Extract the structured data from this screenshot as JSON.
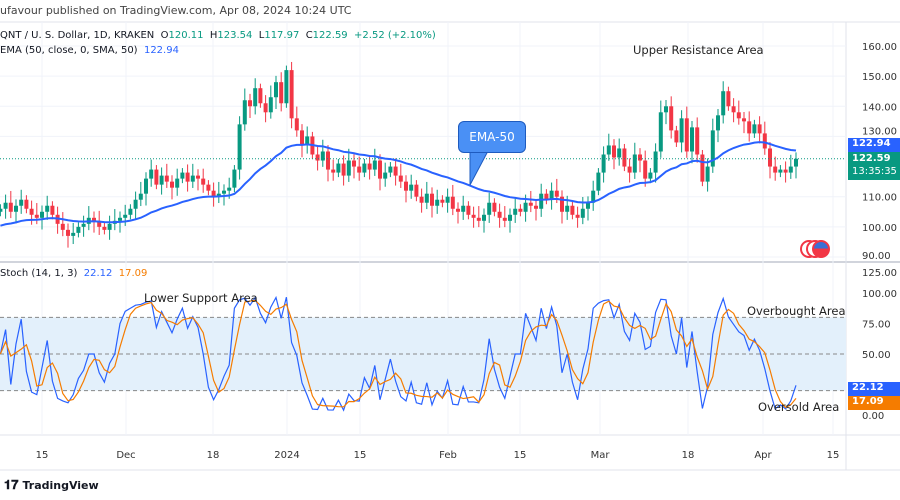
{
  "header": {
    "published": "ufavour published on TradingView.com, Apr 08, 2024 10:24 UTC"
  },
  "legend": {
    "symbol": "QNT / U. S. Dollar, 1D, KRAKEN",
    "o_label": "O",
    "o": "120.11",
    "h_label": "H",
    "h": "123.54",
    "l_label": "L",
    "l": "117.97",
    "c_label": "C",
    "c": "122.59",
    "change": "+2.52 (+2.10%)",
    "ema_label": "EMA (50, close, 0, SMA, 50)",
    "ema_value": "122.94",
    "stoch_label": "Stoch (14, 1, 3)",
    "stoch_k": "22.12",
    "stoch_d": "17.09"
  },
  "annotations": {
    "upper_resistance": "Upper Resistance Area",
    "ema_callout": "EMA-50",
    "lower_support": "Lower Support Area",
    "overbought": "Overbought Area",
    "oversold": "Oversold Area"
  },
  "price_axis": {
    "ticks": [
      "160.00",
      "150.00",
      "140.00",
      "130.00",
      "110.00",
      "100.00",
      "90.00"
    ],
    "ema_tag": "122.94",
    "price_tag": "122.59",
    "countdown": "13:35:35"
  },
  "stoch_axis": {
    "ticks": [
      "125.00",
      "100.00",
      "75.00",
      "50.00",
      "0.00"
    ],
    "k_tag": "22.12",
    "d_tag": "17.09"
  },
  "time_axis": [
    "15",
    "Dec",
    "18",
    "2024",
    "15",
    "Feb",
    "15",
    "Mar",
    "18",
    "Apr",
    "15"
  ],
  "colors": {
    "up": "#089981",
    "down": "#f23645",
    "ema": "#2962ff",
    "stoch_k": "#2962ff",
    "stoch_d": "#f57c00",
    "band": "#e3f0fb"
  },
  "footer": {
    "brand": "TradingView"
  },
  "chart_data": {
    "type": "candlestick",
    "ylim": [
      90,
      160
    ],
    "closes": [
      106,
      108,
      105,
      107,
      109,
      106,
      104,
      103,
      105,
      107,
      104,
      101,
      99,
      97,
      98,
      100,
      101,
      103,
      102,
      100,
      99,
      101,
      102,
      103,
      104,
      106,
      109,
      111,
      116,
      119,
      114,
      117,
      115,
      113,
      116,
      118,
      115,
      117,
      116,
      114,
      112,
      110,
      111,
      112,
      113,
      119,
      134,
      142,
      140,
      146,
      141,
      138,
      143,
      148,
      141,
      152,
      136,
      132,
      127,
      130,
      124,
      122,
      125,
      119,
      118,
      121,
      117,
      122,
      120,
      118,
      121,
      119,
      122,
      116,
      118,
      120,
      117,
      115,
      112,
      114,
      110,
      108,
      111,
      107,
      109,
      108,
      110,
      106,
      105,
      107,
      104,
      103,
      102,
      104,
      108,
      105,
      103,
      102,
      104,
      106,
      105,
      108,
      107,
      106,
      111,
      109,
      112,
      110,
      105,
      107,
      104,
      103,
      106,
      108,
      112,
      118,
      124,
      127,
      123,
      126,
      120,
      118,
      124,
      122,
      116,
      118,
      125,
      138,
      140,
      132,
      128,
      136,
      125,
      133,
      124,
      115,
      120,
      132,
      137,
      145,
      140,
      138,
      136,
      135,
      131,
      134,
      131,
      126,
      120,
      118,
      119,
      118,
      120,
      122.59
    ],
    "stoch_ylim": [
      0,
      100
    ],
    "stoch_levels": [
      80,
      50,
      20
    ]
  }
}
